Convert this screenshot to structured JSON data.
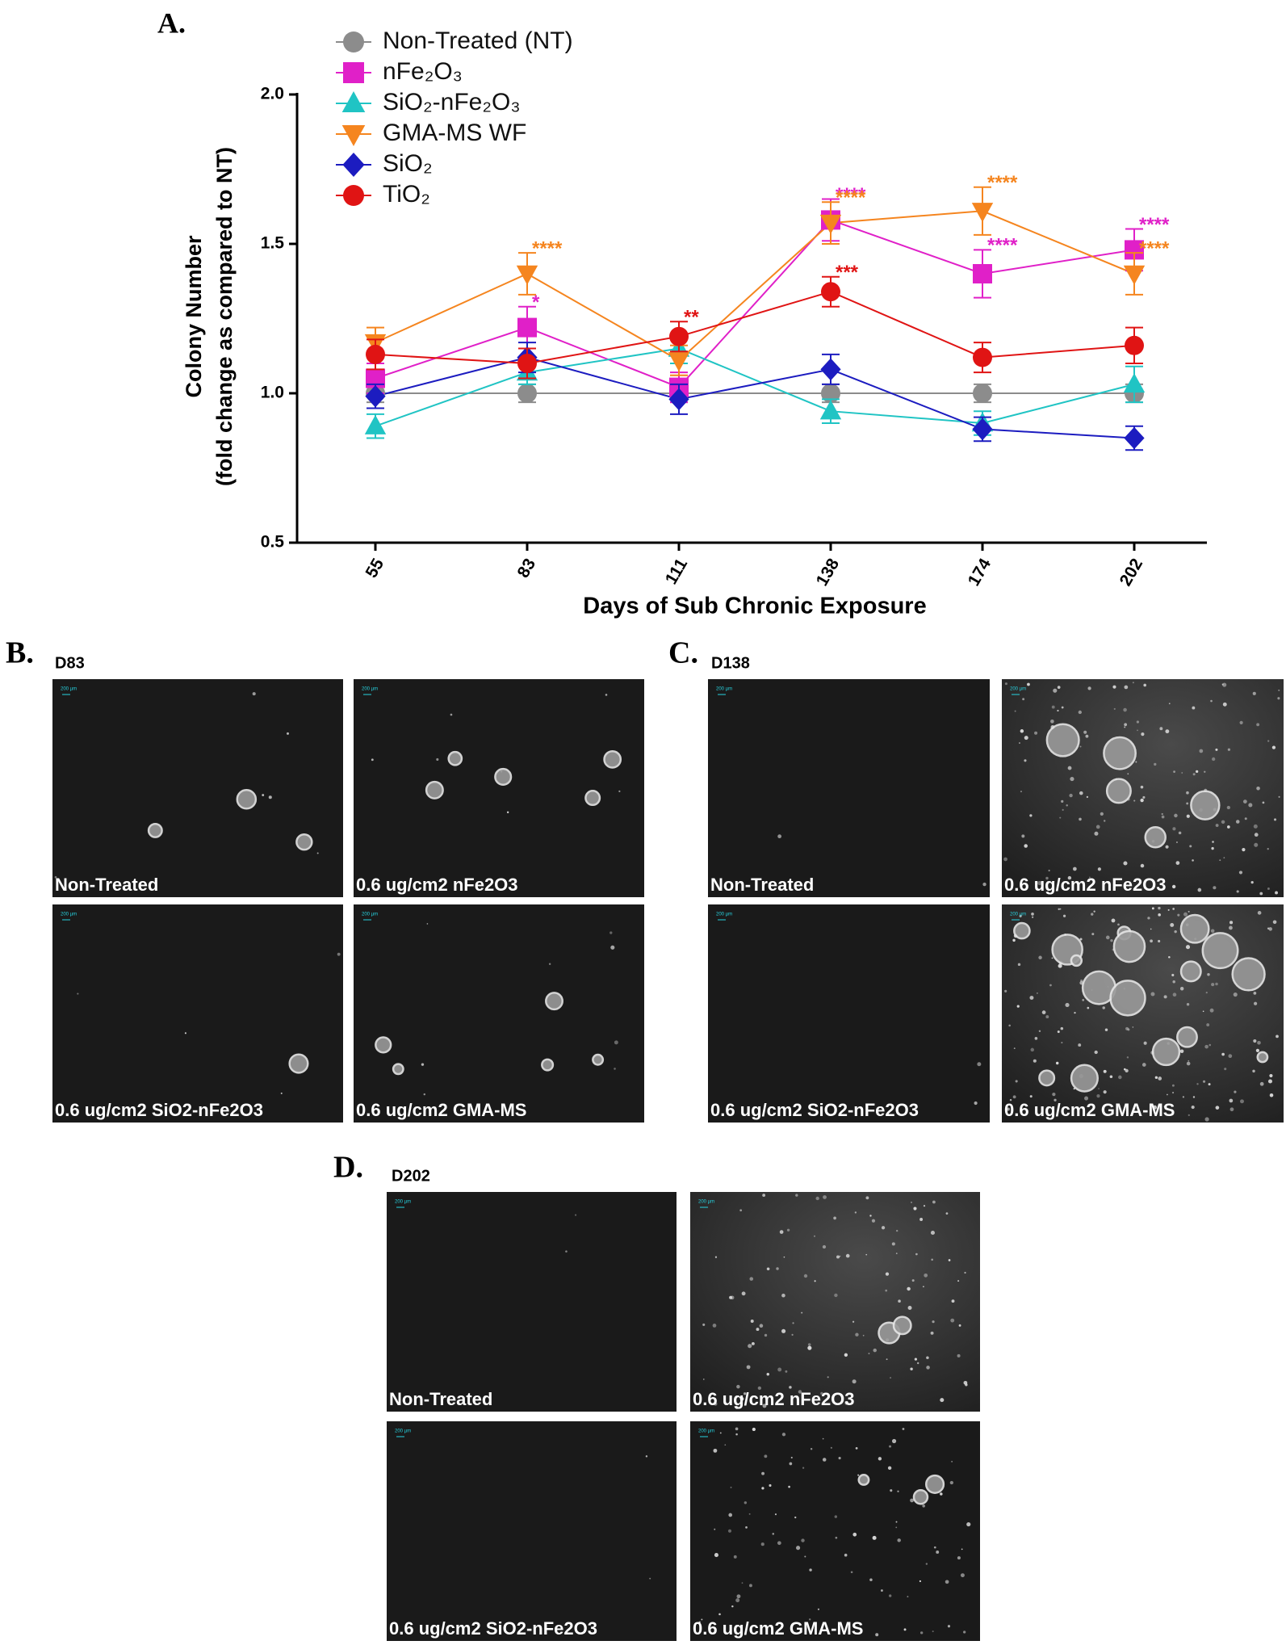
{
  "chart_data": {
    "type": "line",
    "label": "A.",
    "ylabel": [
      "Colony Number",
      "(fold change as compared to NT)"
    ],
    "xlabel": "Days of Sub  Chronic Exposure",
    "categories": [
      "55",
      "83",
      "111",
      "138",
      "174",
      "202"
    ],
    "ylim": [
      0.5,
      2.0
    ],
    "yticks": [
      0.5,
      {
        "value": 1,
        "label": "1.0"
      },
      1.5,
      {
        "value": 2,
        "label": "2.0"
      }
    ],
    "legend": "top",
    "series": [
      {
        "name": "Non-Treated (NT)",
        "color": "#8c8c8c",
        "marker": "circle",
        "values": [
          1.0,
          1.0,
          1.0,
          1.0,
          1.0,
          1.0
        ],
        "errors": [
          0.03,
          0.03,
          0.03,
          0.03,
          0.03,
          0.03
        ],
        "annotations": []
      },
      {
        "name": "nFe₂O₃",
        "color": "#e020c8",
        "marker": "square",
        "values": [
          1.05,
          1.22,
          1.02,
          1.58,
          1.4,
          1.48
        ],
        "errors": [
          0.05,
          0.07,
          0.05,
          0.07,
          0.08,
          0.07
        ],
        "annotations": [
          {
            "category": "83",
            "text": "*"
          },
          {
            "category": "138",
            "text": "****"
          },
          {
            "category": "174",
            "text": "****"
          },
          {
            "category": "202",
            "text": "****"
          }
        ]
      },
      {
        "name": "SiO₂-nFe₂O₃",
        "color": "#20c4c4",
        "marker": "triangle-up",
        "values": [
          0.89,
          1.07,
          1.15,
          0.94,
          0.9,
          1.03
        ],
        "errors": [
          0.04,
          0.04,
          0.05,
          0.04,
          0.04,
          0.06
        ],
        "annotations": []
      },
      {
        "name": "GMA-MS WF",
        "color": "#f5851f",
        "marker": "triangle-down",
        "values": [
          1.17,
          1.4,
          1.11,
          1.57,
          1.61,
          1.4
        ],
        "errors": [
          0.05,
          0.07,
          0.05,
          0.07,
          0.08,
          0.07
        ],
        "annotations": [
          {
            "category": "83",
            "text": "****"
          },
          {
            "category": "138",
            "text": "****"
          },
          {
            "category": "174",
            "text": "****"
          },
          {
            "category": "202",
            "text": "****"
          }
        ]
      },
      {
        "name": "SiO₂",
        "color": "#1c1cc0",
        "marker": "diamond",
        "values": [
          0.99,
          1.12,
          0.98,
          1.08,
          0.88,
          0.85
        ],
        "errors": [
          0.04,
          0.05,
          0.05,
          0.05,
          0.04,
          0.04
        ],
        "annotations": []
      },
      {
        "name": "TiO₂",
        "color": "#e01414",
        "marker": "circle",
        "values": [
          1.13,
          1.1,
          1.19,
          1.34,
          1.12,
          1.16
        ],
        "errors": [
          0.05,
          0.05,
          0.05,
          0.05,
          0.05,
          0.06
        ],
        "annotations": [
          {
            "category": "111",
            "text": "**"
          },
          {
            "category": "138",
            "text": "***"
          }
        ]
      }
    ]
  },
  "panels": [
    {
      "letter": "B.",
      "day": "D83",
      "scale_label": "200 µm",
      "captions": [
        "Non-Treated",
        "0.6 ug/cm2 nFe2O3",
        "0.6 ug/cm2 SiO2-nFe2O3",
        "0.6 ug/cm2 GMA-MS"
      ]
    },
    {
      "letter": "C.",
      "day": "D138",
      "scale_label": "200 µm",
      "captions": [
        "Non-Treated",
        "0.6 ug/cm2 nFe2O3",
        "0.6 ug/cm2 SiO2-nFe2O3",
        "0.6 ug/cm2 GMA-MS"
      ]
    },
    {
      "letter": "D.",
      "day": "D202",
      "scale_label": "200 µm",
      "captions": [
        "Non-Treated",
        "0.6 ug/cm2 nFe2O3",
        "0.6 ug/cm2 SiO2-nFe2O3",
        "0.6 ug/cm2 GMA-MS"
      ]
    }
  ]
}
